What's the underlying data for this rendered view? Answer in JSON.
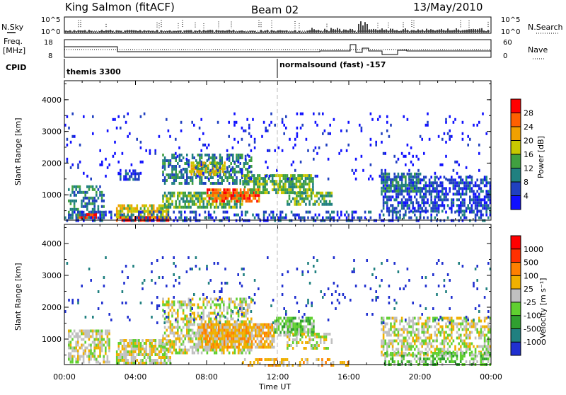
{
  "header": {
    "station": "King Salmon (fitACF)",
    "beam": "Beam 02",
    "date": "13/May/2010"
  },
  "top_panels": {
    "nsky_label": "N.Sky",
    "nsearch_label": "N.Search",
    "nsky_ticks": [
      "10^5",
      "10^0"
    ],
    "nsky_right_ticks": [
      "10^5",
      "10^0"
    ],
    "freq_label_1": "Freq.",
    "freq_label_2": "[MHz]",
    "freq_ticks": [
      "18",
      "8"
    ],
    "nave_label": "Nave",
    "nave_ticks": [
      "60",
      "0"
    ],
    "cpid_label": "CPID",
    "cpid_1": "themis 3300",
    "cpid_2": "normalsound (fast) -157"
  },
  "chart_data": [
    {
      "type": "heatmap",
      "panel": "power",
      "ylabel": "Slant Range [km]",
      "xlabel": "Time UT",
      "ylim": [
        200,
        4600
      ],
      "xlim": [
        0,
        24
      ],
      "yticks": [
        "1000",
        "2000",
        "3000",
        "4000"
      ],
      "xticks": [
        "00:00",
        "04:00",
        "08:00",
        "12:00",
        "16:00",
        "20:00",
        "00:00"
      ],
      "colorbar": {
        "label": "Power [dB]",
        "ticks": [
          "4",
          "8",
          "12",
          "16",
          "20",
          "24",
          "28"
        ],
        "colors": [
          "#1010ff",
          "#2040c0",
          "#208080",
          "#40a040",
          "#c8c800",
          "#f0a000",
          "#ff6000",
          "#ff0000"
        ]
      },
      "regions": [
        {
          "t0": 0.2,
          "t1": 2.2,
          "r0": 250,
          "r1": 1300,
          "level": 2,
          "density": 0.55
        },
        {
          "t0": 0.8,
          "t1": 1.8,
          "r0": 250,
          "r1": 420,
          "level": 7,
          "density": 0.8
        },
        {
          "t0": 2.9,
          "t1": 5.8,
          "r0": 230,
          "r1": 330,
          "level": 7,
          "density": 0.9
        },
        {
          "t0": 2.9,
          "t1": 5.8,
          "r0": 330,
          "r1": 700,
          "level": 4,
          "density": 0.7
        },
        {
          "t0": 3.0,
          "t1": 4.2,
          "r0": 1500,
          "r1": 1800,
          "level": 1,
          "density": 0.5
        },
        {
          "t0": 5.5,
          "t1": 10.0,
          "r0": 600,
          "r1": 1100,
          "level": 3,
          "density": 0.7
        },
        {
          "t0": 8.0,
          "t1": 11.0,
          "r0": 800,
          "r1": 1200,
          "level": 6,
          "density": 0.75
        },
        {
          "t0": 5.5,
          "t1": 10.5,
          "r0": 1400,
          "r1": 2300,
          "level": 2,
          "density": 0.55
        },
        {
          "t0": 7.0,
          "t1": 9.0,
          "r0": 1650,
          "r1": 2050,
          "level": 4,
          "density": 0.6
        },
        {
          "t0": 10.0,
          "t1": 14.0,
          "r0": 1050,
          "r1": 1650,
          "level": 3,
          "density": 0.75
        },
        {
          "t0": 12.5,
          "t1": 15.0,
          "r0": 700,
          "r1": 1100,
          "level": 3,
          "density": 0.6
        },
        {
          "t0": 17.8,
          "t1": 24.0,
          "r0": 500,
          "r1": 1600,
          "level": 1,
          "density": 0.6
        },
        {
          "t0": 17.8,
          "t1": 20.0,
          "r0": 1100,
          "r1": 1700,
          "level": 2,
          "density": 0.6
        },
        {
          "t0": 0.0,
          "t1": 24.0,
          "r0": 200,
          "r1": 500,
          "level": 1,
          "density": 0.35
        },
        {
          "t0": 0.0,
          "t1": 24.0,
          "r0": 1500,
          "r1": 3600,
          "level": 0,
          "density": 0.05
        }
      ]
    },
    {
      "type": "heatmap",
      "panel": "velocity",
      "ylabel": "Slant Range [km]",
      "xlabel": "Time UT",
      "ylim": [
        200,
        4600
      ],
      "xlim": [
        0,
        24
      ],
      "yticks": [
        "1000",
        "2000",
        "3000",
        "4000"
      ],
      "xticks": [
        "00:00",
        "04:00",
        "08:00",
        "12:00",
        "16:00",
        "20:00",
        "00:00"
      ],
      "colorbar": {
        "label": "Velocity [m s⁻¹]",
        "ticks": [
          "1000",
          "500",
          "100",
          "25",
          "-25",
          "-100",
          "-500",
          "-1000"
        ],
        "colors": [
          "#2030d0",
          "#208080",
          "#30a030",
          "#60d030",
          "#c0c0c0",
          "#f0b000",
          "#ff8000",
          "#ff3000",
          "#ff0000"
        ]
      },
      "regions": [
        {
          "t0": 0.2,
          "t1": 2.5,
          "r0": 250,
          "r1": 1300,
          "level": 4,
          "density": 0.6
        },
        {
          "t0": 2.9,
          "t1": 6.0,
          "r0": 250,
          "r1": 1000,
          "level": 4,
          "density": 0.75
        },
        {
          "t0": 5.5,
          "t1": 10.5,
          "r0": 600,
          "r1": 2300,
          "level": 4,
          "density": 0.55
        },
        {
          "t0": 7.5,
          "t1": 11.8,
          "r0": 700,
          "r1": 1500,
          "level": 5,
          "density": 0.85
        },
        {
          "t0": 11.8,
          "t1": 14.0,
          "r0": 1100,
          "r1": 1700,
          "level": 3,
          "density": 0.75
        },
        {
          "t0": 10.0,
          "t1": 16.0,
          "r0": 200,
          "r1": 400,
          "level": 5,
          "density": 0.4
        },
        {
          "t0": 12.5,
          "t1": 15.0,
          "r0": 700,
          "r1": 1200,
          "level": 4,
          "density": 0.45
        },
        {
          "t0": 17.8,
          "t1": 24.0,
          "r0": 500,
          "r1": 1700,
          "level": 4,
          "density": 0.55
        },
        {
          "t0": 18.0,
          "t1": 24.0,
          "r0": 200,
          "r1": 600,
          "level": 3,
          "density": 0.5
        },
        {
          "t0": 0.0,
          "t1": 24.0,
          "r0": 1500,
          "r1": 3600,
          "level": 0,
          "density": 0.04
        }
      ]
    }
  ]
}
